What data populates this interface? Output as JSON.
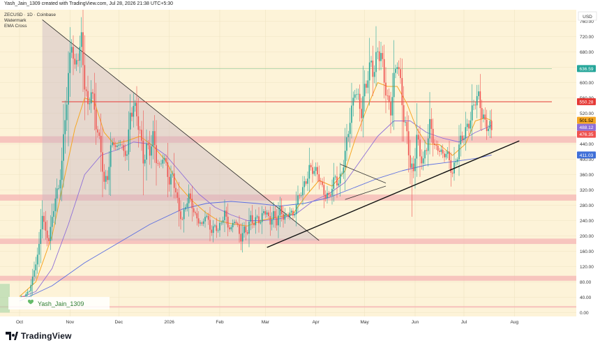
{
  "header": {
    "caption": "Yash_Jain_1309 created with TradingView.com, Jul 28, 2026 21:38 UTC+5:30"
  },
  "footer": {
    "brand": "TradingView"
  },
  "colors": {
    "background": "#fdf3d8",
    "up": "#26a69a",
    "down": "#ef5350",
    "ema_fast": "#f5a623",
    "ema_slow": "#8e6fd8",
    "ema_long": "#5b6ee1",
    "zone": "#f4b6b6",
    "resistance": "#e53935",
    "triangle": "#c9b7c3"
  },
  "chart_data": {
    "type": "candlestick",
    "symbol_line": "ZECUSD · 1D · Coinbase",
    "indicators": [
      "Watermark",
      "EMA Cross"
    ],
    "currency": "USD",
    "watermark": "Yash_Jain_1309",
    "y_axis": {
      "ticks": [
        0,
        40,
        80,
        120,
        160,
        200,
        240,
        280,
        320,
        360,
        400,
        440,
        480,
        520,
        560,
        600,
        640,
        680,
        720,
        760
      ],
      "tick_labels": [
        "0.00",
        "40.00",
        "80.00",
        "120.00",
        "160.00",
        "200.00",
        "240.00",
        "280.00",
        "320.00",
        "360.00",
        "400.00",
        "440.00",
        "480.00",
        "520.00",
        "560.00",
        "600.00",
        "640.00",
        "680.00",
        "720.00",
        "760.00"
      ],
      "range": [
        -10,
        790
      ]
    },
    "x_axis": {
      "labels": [
        {
          "label": "Oct",
          "day": 0
        },
        {
          "label": "Nov",
          "day": 31
        },
        {
          "label": "Dec",
          "day": 61
        },
        {
          "label": "2026",
          "day": 92
        },
        {
          "label": "Feb",
          "day": 123
        },
        {
          "label": "Mar",
          "day": 151
        },
        {
          "label": "Apr",
          "day": 182
        },
        {
          "label": "May",
          "day": 212
        },
        {
          "label": "Jun",
          "day": 243
        },
        {
          "label": "Jul",
          "day": 273
        },
        {
          "label": "Aug",
          "day": 304
        }
      ],
      "range_days": [
        -12,
        342
      ]
    },
    "price_badges": [
      {
        "value": "636.59",
        "price": 636.59,
        "bg": "#26a69a",
        "fg": "#ffffff"
      },
      {
        "value": "550.28",
        "price": 550.28,
        "bg": "#e53935",
        "fg": "#ffffff"
      },
      {
        "value": "501.52",
        "price": 501.52,
        "bg": "#f5a623",
        "fg": "#000000"
      },
      {
        "value": "488.12",
        "price": 488.12,
        "bg": "#8e6fd8",
        "fg": "#ffffff"
      },
      {
        "value": "476.35",
        "price": 476.35,
        "bg": "#ef5350",
        "fg": "#ffffff"
      },
      {
        "value": "411.03",
        "price": 411.03,
        "bg": "#3f6fd8",
        "fg": "#ffffff"
      }
    ],
    "zones": [
      {
        "low": 443,
        "high": 460
      },
      {
        "low": 292,
        "high": 308
      },
      {
        "low": 179,
        "high": 193
      },
      {
        "low": 83,
        "high": 96
      },
      {
        "low": 13,
        "high": 17
      }
    ],
    "resistance_line": {
      "price": 550,
      "start_day": 26,
      "end_day": 327
    },
    "upper_line": {
      "price": 636.59,
      "start_day": 55,
      "end_day": 327
    },
    "triangle": {
      "points": [
        [
          14,
          764
        ],
        [
          184,
          188
        ],
        [
          14,
          188
        ]
      ]
    },
    "trendline": {
      "start": [
        152,
        170
      ],
      "end": [
        307,
        448
      ]
    },
    "pennant": {
      "top_start": [
        197,
        387
      ],
      "top_end": [
        225,
        338
      ],
      "bottom_start": [
        200,
        295
      ],
      "bottom_end": [
        225,
        330
      ]
    },
    "candles": {
      "anchors": [
        [
          0,
          40
        ],
        [
          3,
          42
        ],
        [
          6,
          58
        ],
        [
          9,
          110
        ],
        [
          12,
          170
        ],
        [
          14,
          258
        ],
        [
          16,
          210
        ],
        [
          18,
          195
        ],
        [
          20,
          245
        ],
        [
          22,
          295
        ],
        [
          24,
          320
        ],
        [
          26,
          398
        ],
        [
          28,
          520
        ],
        [
          30,
          610
        ],
        [
          32,
          700
        ],
        [
          34,
          620
        ],
        [
          36,
          690
        ],
        [
          38,
          720
        ],
        [
          40,
          600
        ],
        [
          42,
          520
        ],
        [
          44,
          580
        ],
        [
          46,
          530
        ],
        [
          48,
          480
        ],
        [
          50,
          420
        ],
        [
          52,
          330
        ],
        [
          54,
          350
        ],
        [
          56,
          430
        ],
        [
          58,
          460
        ],
        [
          60,
          420
        ],
        [
          62,
          445
        ],
        [
          64,
          405
        ],
        [
          66,
          430
        ],
        [
          68,
          520
        ],
        [
          70,
          545
        ],
        [
          72,
          500
        ],
        [
          74,
          470
        ],
        [
          76,
          400
        ],
        [
          78,
          440
        ],
        [
          80,
          420
        ],
        [
          82,
          450
        ],
        [
          84,
          400
        ],
        [
          86,
          380
        ],
        [
          88,
          420
        ],
        [
          90,
          380
        ],
        [
          92,
          335
        ],
        [
          94,
          355
        ],
        [
          96,
          320
        ],
        [
          98,
          270
        ],
        [
          100,
          240
        ],
        [
          102,
          275
        ],
        [
          104,
          300
        ],
        [
          106,
          285
        ],
        [
          108,
          255
        ],
        [
          110,
          240
        ],
        [
          112,
          220
        ],
        [
          114,
          255
        ],
        [
          116,
          240
        ],
        [
          118,
          215
        ],
        [
          120,
          225
        ],
        [
          122,
          210
        ],
        [
          124,
          235
        ],
        [
          126,
          265
        ],
        [
          128,
          232
        ],
        [
          130,
          215
        ],
        [
          132,
          240
        ],
        [
          134,
          220
        ],
        [
          136,
          195
        ],
        [
          138,
          222
        ],
        [
          140,
          210
        ],
        [
          142,
          245
        ],
        [
          144,
          228
        ],
        [
          146,
          255
        ],
        [
          148,
          238
        ],
        [
          150,
          268
        ],
        [
          152,
          250
        ],
        [
          154,
          235
        ],
        [
          156,
          260
        ],
        [
          158,
          240
        ],
        [
          160,
          268
        ],
        [
          162,
          245
        ],
        [
          164,
          248
        ],
        [
          166,
          270
        ],
        [
          168,
          255
        ],
        [
          170,
          280
        ],
        [
          172,
          302
        ],
        [
          174,
          320
        ],
        [
          176,
          350
        ],
        [
          178,
          380
        ],
        [
          180,
          372
        ],
        [
          182,
          360
        ],
        [
          184,
          352
        ],
        [
          186,
          328
        ],
        [
          188,
          312
        ],
        [
          190,
          300
        ],
        [
          192,
          320
        ],
        [
          194,
          352
        ],
        [
          196,
          340
        ],
        [
          198,
          375
        ],
        [
          200,
          410
        ],
        [
          202,
          470
        ],
        [
          204,
          520
        ],
        [
          206,
          600
        ],
        [
          208,
          560
        ],
        [
          210,
          520
        ],
        [
          212,
          570
        ],
        [
          214,
          615
        ],
        [
          216,
          660
        ],
        [
          218,
          640
        ],
        [
          220,
          680
        ],
        [
          222,
          655
        ],
        [
          224,
          610
        ],
        [
          226,
          560
        ],
        [
          228,
          540
        ],
        [
          230,
          600
        ],
        [
          232,
          650
        ],
        [
          234,
          590
        ],
        [
          236,
          520
        ],
        [
          238,
          470
        ],
        [
          240,
          380
        ],
        [
          242,
          360
        ],
        [
          244,
          460
        ],
        [
          246,
          420
        ],
        [
          248,
          400
        ],
        [
          250,
          430
        ],
        [
          252,
          480
        ],
        [
          254,
          455
        ],
        [
          256,
          428
        ],
        [
          258,
          440
        ],
        [
          260,
          400
        ],
        [
          262,
          415
        ],
        [
          264,
          390
        ],
        [
          266,
          372
        ],
        [
          268,
          400
        ],
        [
          270,
          430
        ],
        [
          272,
          450
        ],
        [
          274,
          470
        ],
        [
          276,
          505
        ],
        [
          278,
          530
        ],
        [
          280,
          555
        ],
        [
          282,
          548
        ],
        [
          284,
          520
        ],
        [
          286,
          500
        ],
        [
          288,
          495
        ],
        [
          290,
          476
        ]
      ]
    },
    "ema_fast": [
      [
        0,
        42
      ],
      [
        10,
        80
      ],
      [
        20,
        200
      ],
      [
        28,
        360
      ],
      [
        34,
        480
      ],
      [
        40,
        560
      ],
      [
        46,
        550
      ],
      [
        52,
        470
      ],
      [
        58,
        440
      ],
      [
        66,
        448
      ],
      [
        74,
        460
      ],
      [
        82,
        435
      ],
      [
        90,
        395
      ],
      [
        98,
        330
      ],
      [
        106,
        292
      ],
      [
        114,
        262
      ],
      [
        122,
        240
      ],
      [
        130,
        232
      ],
      [
        140,
        226
      ],
      [
        150,
        242
      ],
      [
        160,
        250
      ],
      [
        168,
        258
      ],
      [
        176,
        305
      ],
      [
        184,
        345
      ],
      [
        192,
        330
      ],
      [
        200,
        370
      ],
      [
        206,
        450
      ],
      [
        214,
        540
      ],
      [
        220,
        600
      ],
      [
        226,
        590
      ],
      [
        232,
        590
      ],
      [
        238,
        545
      ],
      [
        244,
        480
      ],
      [
        250,
        440
      ],
      [
        258,
        438
      ],
      [
        266,
        410
      ],
      [
        274,
        440
      ],
      [
        280,
        500
      ],
      [
        286,
        508
      ],
      [
        290,
        501
      ]
    ],
    "ema_slow": [
      [
        0,
        38
      ],
      [
        10,
        55
      ],
      [
        20,
        115
      ],
      [
        30,
        230
      ],
      [
        40,
        360
      ],
      [
        50,
        410
      ],
      [
        60,
        425
      ],
      [
        70,
        445
      ],
      [
        80,
        440
      ],
      [
        90,
        410
      ],
      [
        100,
        360
      ],
      [
        110,
        310
      ],
      [
        120,
        275
      ],
      [
        130,
        255
      ],
      [
        140,
        240
      ],
      [
        150,
        240
      ],
      [
        160,
        245
      ],
      [
        170,
        258
      ],
      [
        180,
        290
      ],
      [
        190,
        310
      ],
      [
        200,
        340
      ],
      [
        210,
        400
      ],
      [
        220,
        460
      ],
      [
        230,
        500
      ],
      [
        240,
        500
      ],
      [
        250,
        470
      ],
      [
        260,
        455
      ],
      [
        270,
        445
      ],
      [
        280,
        470
      ],
      [
        290,
        488
      ]
    ],
    "ema_long": [
      [
        0,
        30
      ],
      [
        20,
        70
      ],
      [
        40,
        130
      ],
      [
        60,
        180
      ],
      [
        80,
        230
      ],
      [
        100,
        270
      ],
      [
        115,
        285
      ],
      [
        130,
        290
      ],
      [
        145,
        285
      ],
      [
        160,
        278
      ],
      [
        175,
        285
      ],
      [
        190,
        300
      ],
      [
        205,
        325
      ],
      [
        220,
        350
      ],
      [
        235,
        370
      ],
      [
        250,
        385
      ],
      [
        265,
        393
      ],
      [
        280,
        402
      ],
      [
        290,
        411
      ]
    ]
  }
}
